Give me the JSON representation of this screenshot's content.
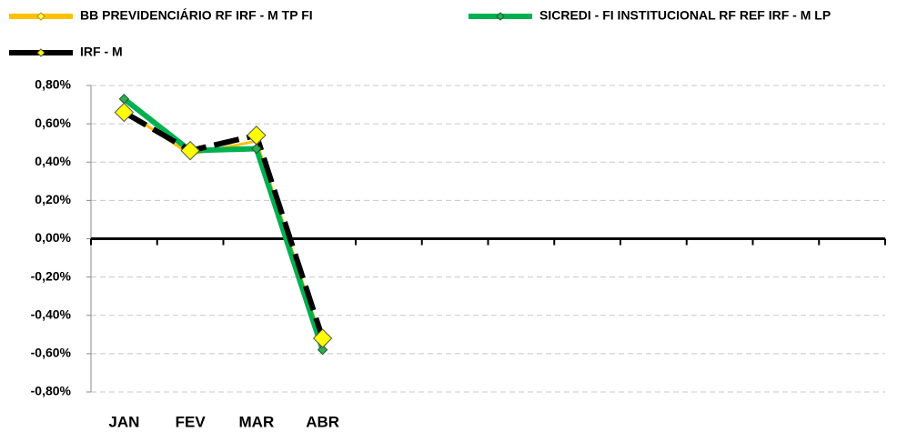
{
  "chart_data": {
    "type": "line",
    "categories": [
      "JAN",
      "FEV",
      "MAR",
      "ABR",
      null,
      null,
      null,
      null,
      null,
      null,
      null,
      null
    ],
    "series": [
      {
        "name": "BB PREVIDENCIÁRIO RF IRF - M TP FI",
        "color": "#ffc000",
        "values": [
          0.67,
          0.44,
          0.51,
          -0.55,
          null,
          null,
          null,
          null,
          null,
          null,
          null,
          null
        ]
      },
      {
        "name": "SICREDI - FI INSTITUCIONAL RF REF IRF - M LP",
        "color": "#00b050",
        "values": [
          0.73,
          0.46,
          0.47,
          -0.58,
          null,
          null,
          null,
          null,
          null,
          null,
          null,
          null
        ]
      },
      {
        "name": "IRF - M",
        "color": "#000000",
        "values": [
          0.66,
          0.46,
          0.54,
          -0.52,
          null,
          null,
          null,
          null,
          null,
          null,
          null,
          null
        ]
      }
    ],
    "ylim": [
      -0.8,
      0.8
    ],
    "yticks": [
      {
        "value": 0.8,
        "label": "0,80%"
      },
      {
        "value": 0.6,
        "label": "0,60%"
      },
      {
        "value": 0.4,
        "label": "0,40%"
      },
      {
        "value": 0.2,
        "label": "0,20%"
      },
      {
        "value": 0,
        "label": "0,00%"
      },
      {
        "value": -0.2,
        "label": "-0,20%"
      },
      {
        "value": -0.4,
        "label": "-0,40%"
      },
      {
        "value": -0.6,
        "label": "-0,60%"
      },
      {
        "value": -0.8,
        "label": "-0,80%"
      }
    ],
    "grid": true
  }
}
